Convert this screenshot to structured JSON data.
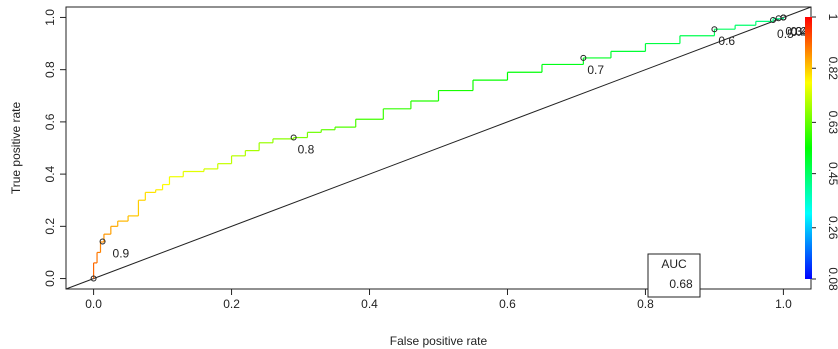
{
  "chart_data": {
    "type": "line",
    "xlabel": "False positive rate",
    "ylabel": "True positive rate",
    "xlim": [
      -0.04,
      1.04
    ],
    "ylim": [
      -0.04,
      1.04
    ],
    "x_ticks": [
      "0.0",
      "0.2",
      "0.4",
      "0.6",
      "0.8",
      "1.0"
    ],
    "y_ticks": [
      "0.0",
      "0.2",
      "0.4",
      "0.6",
      "0.8",
      "1.0"
    ],
    "grid": false,
    "series": [
      {
        "x": [
          0.0,
          0.0,
          0.005,
          0.005,
          0.01,
          0.01,
          0.015,
          0.015,
          0.025,
          0.025,
          0.035,
          0.035,
          0.05,
          0.05,
          0.065,
          0.065,
          0.075,
          0.075,
          0.09,
          0.09,
          0.1,
          0.1,
          0.11,
          0.11,
          0.13,
          0.13,
          0.16,
          0.16,
          0.18,
          0.18,
          0.2,
          0.2,
          0.22,
          0.22,
          0.24,
          0.24,
          0.26,
          0.26,
          0.29,
          0.29,
          0.31,
          0.31,
          0.33,
          0.33,
          0.35,
          0.35,
          0.38,
          0.38,
          0.42,
          0.42,
          0.46,
          0.46,
          0.5,
          0.5,
          0.55,
          0.55,
          0.6,
          0.6,
          0.65,
          0.65,
          0.71,
          0.71,
          0.75,
          0.75,
          0.8,
          0.8,
          0.85,
          0.85,
          0.9,
          0.9,
          0.93,
          0.93,
          0.96,
          0.96,
          0.985,
          0.985,
          1.0,
          1.0
        ],
        "y": [
          0.0,
          0.06,
          0.06,
          0.1,
          0.1,
          0.14,
          0.14,
          0.17,
          0.17,
          0.2,
          0.2,
          0.22,
          0.22,
          0.24,
          0.24,
          0.3,
          0.3,
          0.33,
          0.33,
          0.34,
          0.34,
          0.36,
          0.36,
          0.39,
          0.39,
          0.41,
          0.41,
          0.42,
          0.42,
          0.44,
          0.44,
          0.47,
          0.47,
          0.49,
          0.49,
          0.52,
          0.52,
          0.535,
          0.535,
          0.54,
          0.54,
          0.56,
          0.56,
          0.57,
          0.57,
          0.58,
          0.58,
          0.61,
          0.61,
          0.65,
          0.65,
          0.68,
          0.68,
          0.72,
          0.72,
          0.76,
          0.76,
          0.79,
          0.79,
          0.82,
          0.82,
          0.845,
          0.845,
          0.87,
          0.87,
          0.9,
          0.9,
          0.93,
          0.93,
          0.955,
          0.955,
          0.97,
          0.97,
          0.985,
          0.985,
          0.995,
          0.995,
          1.0
        ]
      }
    ],
    "cutoff_points": [
      {
        "x": 0.0,
        "y": 0.0,
        "label": ""
      },
      {
        "x": 0.013,
        "y": 0.142,
        "label": "0.9"
      },
      {
        "x": 0.29,
        "y": 0.54,
        "label": "0.8"
      },
      {
        "x": 0.71,
        "y": 0.845,
        "label": "0.7"
      },
      {
        "x": 0.9,
        "y": 0.955,
        "label": "0.6"
      },
      {
        "x": 0.985,
        "y": 0.99,
        "label": "0.5"
      },
      {
        "x": 0.993,
        "y": 0.997,
        "label": "0.4"
      },
      {
        "x": 1.0,
        "y": 1.0,
        "label": "0.3"
      },
      {
        "x": 1.0,
        "y": 1.0,
        "label": "0.2"
      },
      {
        "x": 1.0,
        "y": 1.0,
        "label": "0.1"
      }
    ],
    "legend_box": {
      "title": "AUC",
      "value": "0.68",
      "placement": "bottom-right"
    },
    "colorbar": {
      "ticks": [
        "0.08",
        "0.26",
        "0.45",
        "0.63",
        "0.82",
        "1"
      ],
      "min": 0.08,
      "max": 1.0,
      "colors": [
        "#0000ff",
        "#00ffff",
        "#00ff00",
        "#ffff00",
        "#ff0000"
      ]
    }
  }
}
